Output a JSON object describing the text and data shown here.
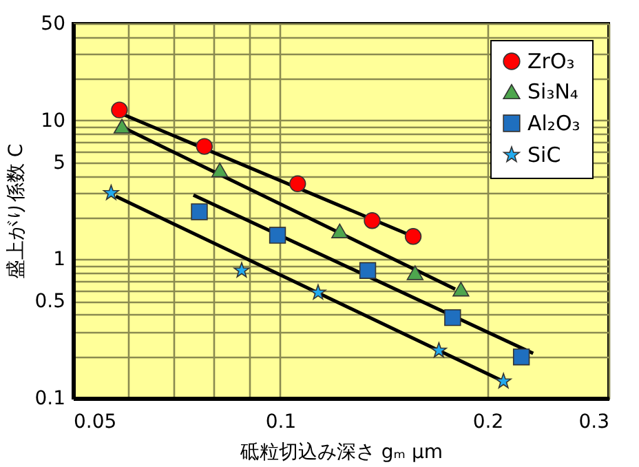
{
  "chart_data": {
    "type": "scatter",
    "xlabel": "砥粒切込み深さ  gₘ    μm",
    "ylabel": "盛上がり係数  C",
    "log": "xy",
    "grid": true,
    "legend": "top right",
    "xlim": [
      0.05,
      0.3
    ],
    "ylim": [
      0.1,
      50
    ],
    "xticks": [
      0.05,
      {
        "value": 0.06,
        "label": null
      },
      {
        "value": 0.07,
        "label": null
      },
      {
        "value": 0.08,
        "label": null
      },
      {
        "value": 0.09,
        "label": null
      },
      0.1,
      0.2,
      0.3
    ],
    "yticks": [
      0.1,
      {
        "value": 0.2,
        "label": null
      },
      {
        "value": 0.3,
        "label": null
      },
      {
        "value": 0.4,
        "label": null
      },
      0.5,
      {
        "value": 0.6,
        "label": null
      },
      {
        "value": 0.7,
        "label": null
      },
      {
        "value": 0.8,
        "label": null
      },
      {
        "value": 0.9,
        "label": null
      },
      1,
      {
        "value": 2,
        "label": null
      },
      {
        "value": 3,
        "label": null
      },
      {
        "value": 4,
        "label": null
      },
      5,
      {
        "value": 6,
        "label": null
      },
      {
        "value": 7,
        "label": null
      },
      {
        "value": 8,
        "label": null
      },
      {
        "value": 9,
        "label": null
      },
      10,
      {
        "value": 20,
        "label": null
      },
      {
        "value": 30,
        "label": null
      },
      {
        "value": 40,
        "label": null
      },
      50
    ],
    "series": [
      {
        "name": "ZrO₃",
        "type": "scatter",
        "marker": "circle",
        "color": "#ff0000",
        "x": [
          0.0584,
          0.0776,
          0.106,
          0.136,
          0.156
        ],
        "values": [
          11.9,
          6.5,
          3.5,
          1.9,
          1.46
        ]
      },
      {
        "name": "Si₃N₄",
        "type": "scatter",
        "marker": "triangle",
        "color": "#4ea64e",
        "x": [
          0.0589,
          0.0817,
          0.122,
          0.157,
          0.183
        ],
        "values": [
          9.1,
          4.4,
          1.6,
          0.8,
          0.61
        ]
      },
      {
        "name": "Al₂O₃",
        "type": "scatter",
        "marker": "square",
        "color": "#1f6fbf",
        "x": [
          0.0763,
          0.0991,
          0.134,
          0.178,
          0.224
        ],
        "values": [
          2.2,
          1.49,
          0.83,
          0.38,
          0.198
        ]
      },
      {
        "name": "SiC",
        "type": "scatter",
        "marker": "star",
        "color": "#22aaee",
        "x": [
          0.0568,
          0.0879,
          0.1135,
          0.17,
          0.211
        ],
        "values": [
          3.0,
          0.83,
          0.575,
          0.22,
          0.132
        ]
      },
      {
        "type": "line",
        "color": "#000000",
        "x": [
          0.059,
          0.156
        ],
        "values": [
          11.1,
          1.46
        ]
      },
      {
        "type": "line",
        "color": "#000000",
        "x": [
          0.0598,
          0.1795
        ],
        "values": [
          8.65,
          0.61
        ]
      },
      {
        "type": "line",
        "color": "#000000",
        "x": [
          0.0748,
          0.233
        ],
        "values": [
          2.9,
          0.21
        ]
      },
      {
        "type": "line",
        "color": "#000000",
        "x": [
          0.0577,
          0.211
        ],
        "values": [
          2.84,
          0.132
        ]
      }
    ]
  }
}
